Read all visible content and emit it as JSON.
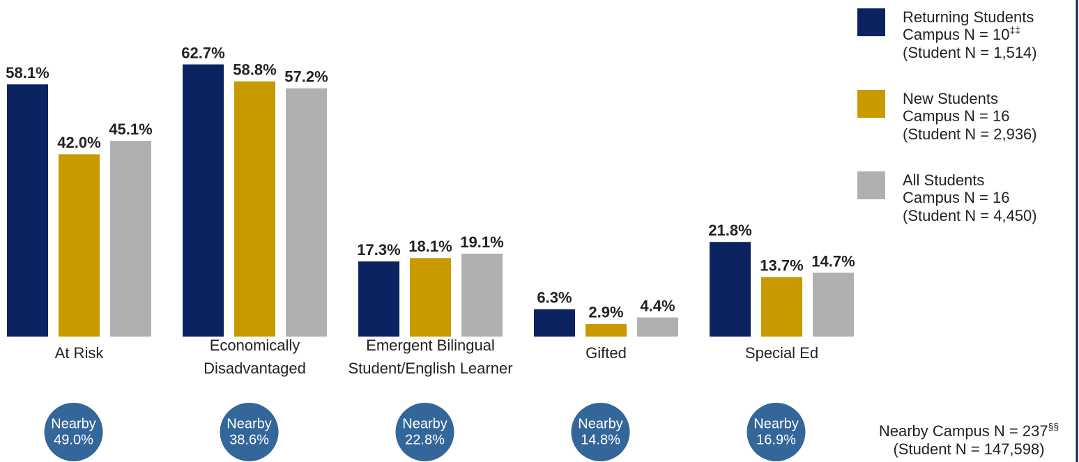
{
  "chart_data": {
    "type": "bar",
    "categories": [
      [
        "At Risk"
      ],
      [
        "Economically",
        "Disadvantaged"
      ],
      [
        "Emergent Bilingual",
        "Student/English Learner"
      ],
      [
        "Gifted"
      ],
      [
        "Special Ed"
      ]
    ],
    "series": [
      {
        "name": "Returning Students",
        "campus_n": "Campus N = 10",
        "campus_n_note": "‡‡",
        "student_n": "(Student N = 1,514)",
        "color": "#0b2361",
        "values": [
          58.1,
          62.7,
          17.3,
          6.3,
          21.8
        ],
        "value_labels": [
          "58.1%",
          "62.7%",
          "17.3%",
          "6.3%",
          "21.8%"
        ]
      },
      {
        "name": "New Students",
        "campus_n": "Campus N = 16",
        "student_n": "(Student N = 2,936)",
        "color": "#c99a00",
        "values": [
          42.0,
          58.8,
          18.1,
          2.9,
          13.7
        ],
        "value_labels": [
          "42.0%",
          "58.8%",
          "18.1%",
          "2.9%",
          "13.7%"
        ]
      },
      {
        "name": "All Students",
        "campus_n": "Campus N = 16",
        "student_n": "(Student N = 4,450)",
        "color": "#b0b0b0",
        "values": [
          45.1,
          57.2,
          19.1,
          4.4,
          14.7
        ],
        "value_labels": [
          "45.1%",
          "57.2%",
          "19.1%",
          "4.4%",
          "14.7%"
        ]
      }
    ],
    "ylim": [
      0,
      70
    ],
    "nearby": {
      "label": "Nearby",
      "color": "#336699",
      "values": [
        49.0,
        38.6,
        22.8,
        14.8,
        16.9
      ],
      "value_labels": [
        "49.0%",
        "38.6%",
        "22.8%",
        "14.8%",
        "16.9%"
      ]
    },
    "footnote": {
      "campus_n": "Nearby Campus N = 237",
      "campus_n_note": "§§",
      "student_n": "(Student N = 147,598)"
    }
  }
}
